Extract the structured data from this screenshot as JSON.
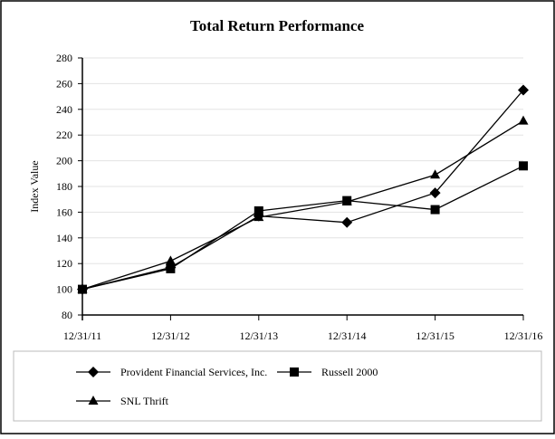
{
  "chart_data": {
    "type": "line",
    "title": "Total Return Performance",
    "xlabel": "",
    "ylabel": "Index Value",
    "categories": [
      "12/31/11",
      "12/31/12",
      "12/31/13",
      "12/31/14",
      "12/31/15",
      "12/31/16"
    ],
    "ylim": [
      80,
      280
    ],
    "yticks": [
      80,
      100,
      120,
      140,
      160,
      180,
      200,
      220,
      240,
      260,
      280
    ],
    "grid": true,
    "legend_position": "bottom",
    "series": [
      {
        "name": "Provident Financial Services, Inc.",
        "marker": "diamond",
        "color": "#000000",
        "values": [
          100,
          117,
          157,
          152,
          175,
          255
        ]
      },
      {
        "name": "Russell 2000",
        "marker": "square",
        "color": "#000000",
        "values": [
          100,
          116,
          161,
          169,
          162,
          196
        ]
      },
      {
        "name": "SNL Thrift",
        "marker": "triangle",
        "color": "#000000",
        "values": [
          100,
          122,
          156,
          168,
          189,
          231
        ]
      }
    ]
  }
}
